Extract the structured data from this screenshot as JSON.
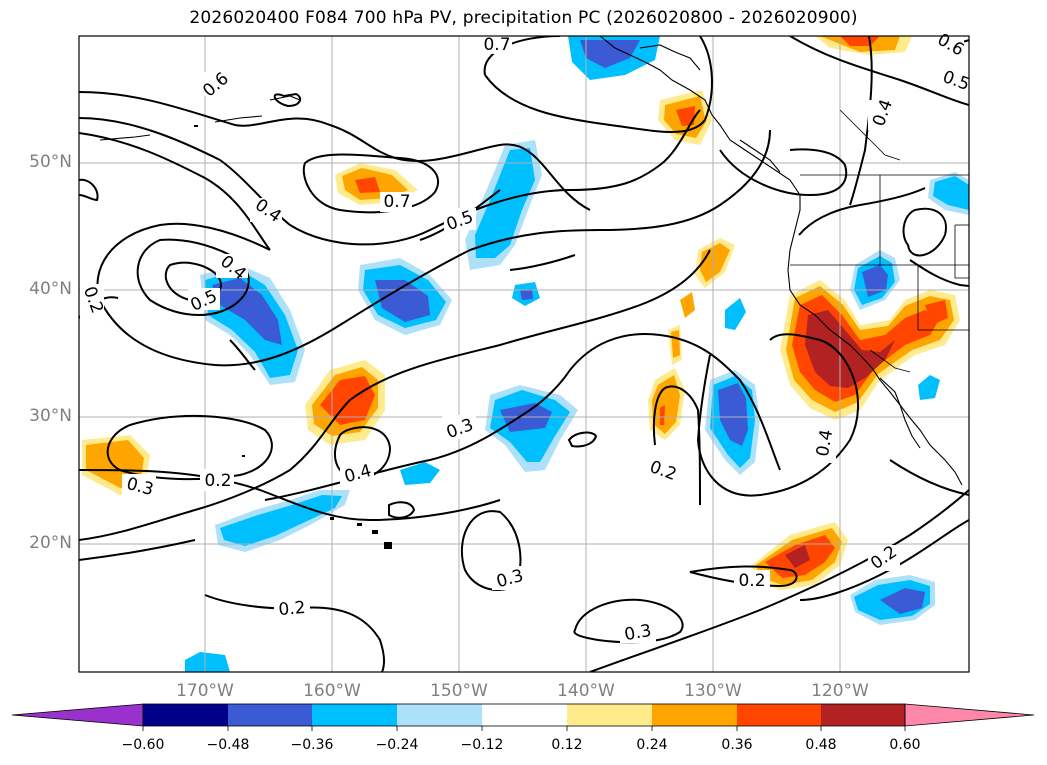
{
  "title": "2026020400 F084 700 hPa PV, precipitation PC (2026020800 - 2026020900)",
  "lat_labels": [
    "50°N",
    "40°N",
    "30°N",
    "20°N"
  ],
  "lon_labels": [
    "170°W",
    "160°W",
    "150°W",
    "140°W",
    "130°W",
    "120°W"
  ],
  "colorbar": {
    "ticks": [
      "−0.60",
      "−0.48",
      "−0.36",
      "−0.24",
      "−0.12",
      "0.12",
      "0.24",
      "0.36",
      "0.48",
      "0.60"
    ],
    "colors": [
      "#9932cc",
      "#00008b",
      "#3b5bd5",
      "#00bfff",
      "#ade1fa",
      "#ffffff",
      "#ffea8c",
      "#ffa500",
      "#ff4500",
      "#b22222",
      "#ff88aa"
    ]
  },
  "contour_labels": [
    "0.7",
    "0.6",
    "0.6",
    "0.5",
    "0.4",
    "0.4",
    "0.5",
    "0.4",
    "0.5",
    "0.7",
    "0.2",
    "0.3",
    "0.2",
    "0.3",
    "0.4",
    "0.2",
    "0.4",
    "0.2",
    "0.3",
    "0.3",
    "0.2",
    "0.2"
  ]
}
